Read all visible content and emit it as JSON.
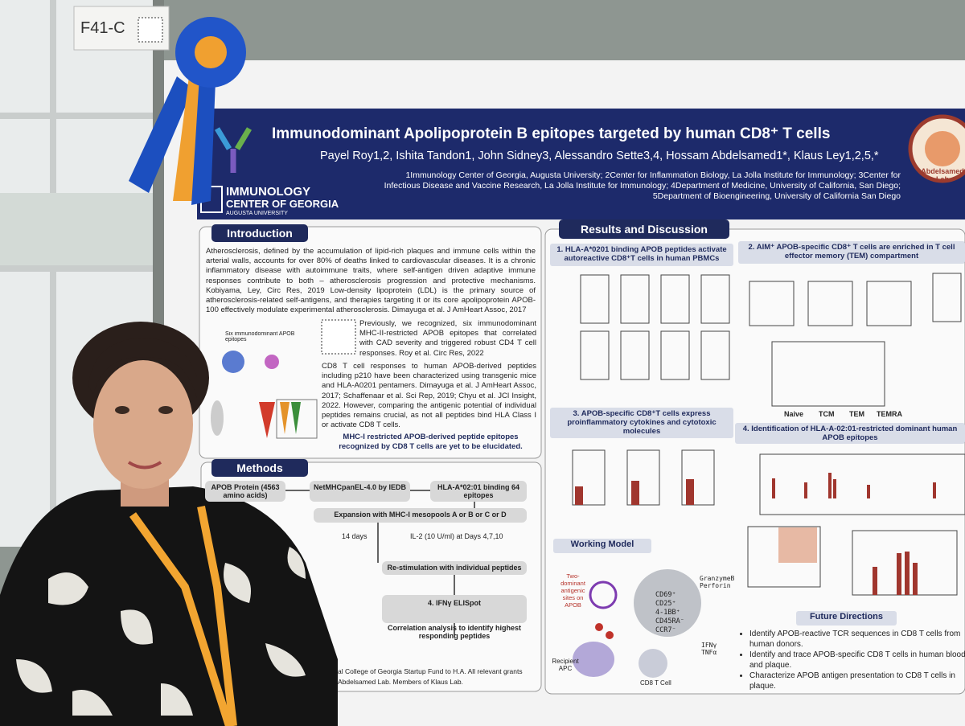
{
  "board_label": "F41-C",
  "poster": {
    "title": "Immunodominant Apolipoprotein B epitopes targeted by human CD8⁺ T cells",
    "authors": "Payel Roy1,2, Ishita Tandon1, John Sidney3, Alessandro Sette3,4, Hossam Abdelsamed1*, Klaus Ley1,2,5,*",
    "affiliations": "1Immunology Center of Georgia, Augusta University; 2Center for Inflammation Biology, La Jolla Institute for Immunology; 3Center for Infectious Disease and Vaccine Research, La Jolla Institute for Immunology; 4Department of Medicine, University of California, San Diego; 5Department of Bioengineering, University of California San Diego",
    "logo": {
      "line1": "IMMUNOLOGY",
      "line2": "CENTER OF GEORGIA",
      "line3": "AUGUSTA UNIVERSITY"
    },
    "seal": "Abdelsamed Lab",
    "introduction": {
      "heading": "Introduction",
      "p1": "Atherosclerosis, defined by the accumulation of lipid-rich plaques and immune cells within the arterial walls, accounts for over 80% of deaths linked to cardiovascular diseases. It is a chronic inflammatory disease with autoimmune traits, where self-antigen driven adaptive immune responses contribute to both – atherosclerosis progression and protective mechanisms. Kobiyama, Ley, Circ Res, 2019 Low-density lipoprotein (LDL) is the primary source of atherosclerosis-related self-antigens, and therapies targeting it or its core apolipoprotein APOB-100 effectively modulate experimental atherosclerosis. Dimayuga et al. J AmHeart Assoc, 2017",
      "figure_label": "Six immunodominant APOB epitopes",
      "p2": "Previously, we recognized, six immunodominant MHC-II-restricted APOB epitopes that correlated with CAD severity and triggered robust CD4 T cell responses. Roy et al. Circ Res, 2022",
      "p3": "CD8 T cell responses to human APOB-derived peptides including p210 have been characterized using transgenic mice and HLA-A0201 pentamers. Dimayuga et al. J AmHeart Assoc, 2017; Schaffenaar et al. Sci Rep, 2019; Chyu et al. JCI Insight, 2022. However, comparing the antigenic potential of individual peptides remains crucial, as not all peptides bind HLA Class I or activate CD8 T cells.",
      "conclusion": "MHC-I restricted APOB-derived peptide epitopes recognized by CD8 T cells are yet to be elucidated."
    },
    "methods": {
      "heading": "Methods",
      "boxes": [
        "APOB Protein (4563 amino acids)",
        "NetMHCpanEL-4.0 by IEDB",
        "HLA-A*02:01 binding 64 epitopes",
        "Expansion with MHC-I mesopools A or B or C or D",
        "14 days",
        "IL-2 (10 U/ml) at Days 4,7,10",
        "Re-stimulation with individual peptides",
        "4. IFNγ ELISpot",
        "Correlation analysis to identify highest responding peptides"
      ],
      "acknowledgment": [
        "al College of Georgia Startup Fund to H.A. All relevant grants",
        "Abdelsamed Lab. Members of Klaus Lab."
      ]
    },
    "results": {
      "heading": "Results and Discussion",
      "panels": [
        "1. HLA-A*0201 binding APOB peptides activate autoreactive CD8⁺T cells in human PBMCs",
        "2. AIM⁺ APOB-specific CD8⁺ T cells are enriched in T cell effector memory (TEM) compartment",
        "3. APOB-specific CD8⁺T cells express proinflammatory cytokines and cytotoxic molecules",
        "4. Identification of HLA-A-02:01-restricted dominant human APOB epitopes"
      ],
      "subsets": [
        "Naive",
        "TCM",
        "TEM",
        "TEMRA"
      ]
    },
    "working_model": {
      "heading": "Working Model",
      "labels": [
        "Two-dominant antigenic sites on APOB",
        "Recipient APC",
        "CD8 T Cell",
        "GranzymeB Perforin",
        "CD69⁺ CD25⁺ 4-1BB⁺ CD45RA⁻ CCR7⁻",
        "IFNγ TNFα"
      ]
    },
    "future_directions": {
      "heading": "Future Directions",
      "items": [
        "Identify APOB-reactive TCR sequences in CD8 T cells from human donors.",
        "Identify and trace APOB-specific CD8 T cells in human blood and plaque.",
        "Characterize APOB antigen presentation to CD8 T cells in plaque."
      ]
    }
  }
}
